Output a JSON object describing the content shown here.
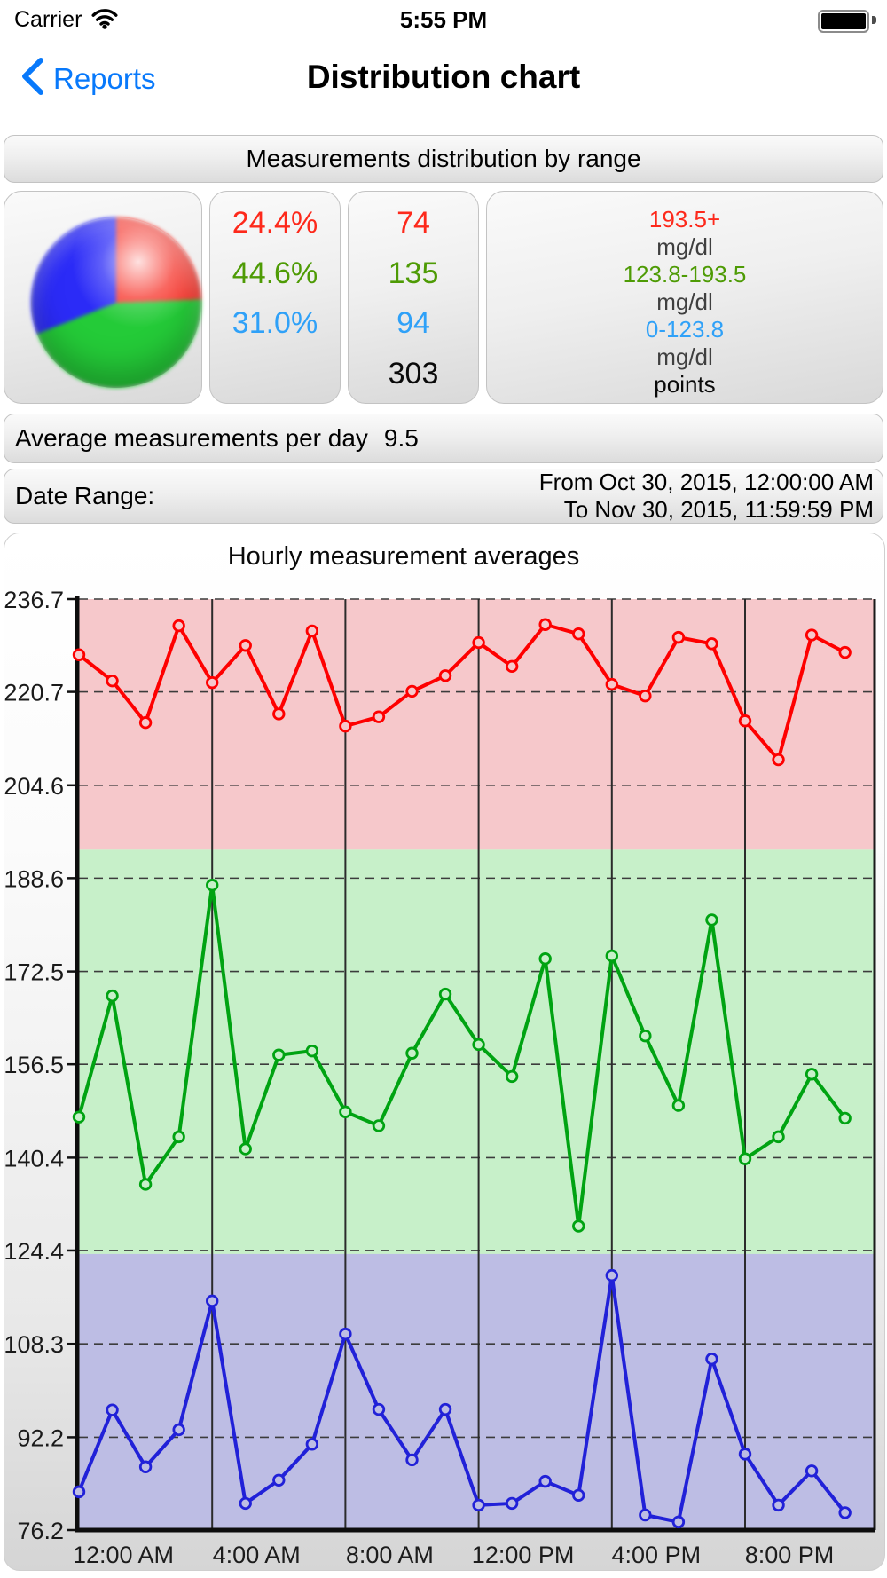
{
  "status_bar": {
    "carrier": "Carrier",
    "time": "5:55 PM"
  },
  "nav_bar": {
    "back_label": "Reports",
    "title": "Distribution chart"
  },
  "colors": {
    "accent_blue": "#0879fb",
    "text_red": "#fd291b",
    "text_green": "#4e9b05",
    "text_blue": "#2fa1f8",
    "pie_red": "#f7362d",
    "pie_green": "#24cb38",
    "pie_blue": "#2b2bf7"
  },
  "distribution": {
    "header": "Measurements distribution by range",
    "percentages": [
      {
        "value": "24.4%",
        "color": "#fd291b"
      },
      {
        "value": "44.6%",
        "color": "#4e9b05"
      },
      {
        "value": "31.0%",
        "color": "#2fa1f8"
      }
    ],
    "counts": [
      {
        "value": "74",
        "color": "#fd291b"
      },
      {
        "value": "135",
        "color": "#4e9b05"
      },
      {
        "value": "94",
        "color": "#2fa1f8"
      },
      {
        "value": "303",
        "color": "#0a0a0a"
      }
    ],
    "ranges": [
      {
        "range": "193.5+",
        "unit": "mg/dl",
        "color": "#fd291b"
      },
      {
        "range": "123.8-193.5",
        "unit": "mg/dl",
        "color": "#4e9b05"
      },
      {
        "range": "0-123.8",
        "unit": "mg/dl",
        "color": "#2fa1f8"
      }
    ],
    "points_label": "points",
    "pie": {
      "slices": [
        24.4,
        44.6,
        31.0
      ]
    }
  },
  "summary": {
    "avg_label": "Average measurements per day",
    "avg_value": "9.5",
    "date_range_label": "Date Range:",
    "date_from": "From Oct 30, 2015, 12:00:00 AM",
    "date_to": "To Nov 30, 2015, 11:59:59 PM"
  },
  "chart_data": {
    "type": "line",
    "title": "Hourly measurement averages",
    "ylim": [
      76.2,
      236.7
    ],
    "y_ticks": [
      236.7,
      220.7,
      204.6,
      188.6,
      172.5,
      156.5,
      140.4,
      124.4,
      108.3,
      92.2,
      76.2
    ],
    "x_ticks": [
      {
        "hour": 0,
        "label": "12:00 AM"
      },
      {
        "hour": 4,
        "label": "4:00 AM"
      },
      {
        "hour": 8,
        "label": "8:00 AM"
      },
      {
        "hour": 12,
        "label": "12:00 PM"
      },
      {
        "hour": 16,
        "label": "4:00 PM"
      },
      {
        "hour": 20,
        "label": "8:00 PM"
      }
    ],
    "grid_hours": [
      4,
      8,
      12,
      16,
      20
    ],
    "bands": [
      {
        "name": "high",
        "from": 193.5,
        "to": 236.7,
        "color": "#f6c8cb"
      },
      {
        "name": "in-range",
        "from": 123.8,
        "to": 193.5,
        "color": "#c7f0c9"
      },
      {
        "name": "low",
        "from": 76.2,
        "to": 123.8,
        "color": "#bdbde4"
      }
    ],
    "series": [
      {
        "name": "high",
        "color": "#fe0000",
        "marker_fill": "#f6c8cb",
        "values": [
          227.1,
          222.6,
          215.4,
          232.1,
          222.3,
          228.7,
          216.9,
          231.2,
          214.8,
          216.4,
          220.8,
          223.5,
          229.2,
          225.1,
          232.3,
          230.7,
          222.0,
          220.0,
          230.1,
          229.0,
          215.7,
          209.0,
          230.5,
          227.5
        ]
      },
      {
        "name": "in-range",
        "color": "#00a312",
        "marker_fill": "#c7f0c9",
        "values": [
          147.4,
          168.3,
          135.8,
          144.0,
          187.4,
          141.9,
          158.1,
          158.8,
          148.3,
          145.9,
          158.4,
          168.6,
          159.9,
          154.4,
          174.7,
          128.6,
          175.2,
          161.4,
          149.4,
          181.4,
          140.2,
          144.0,
          154.8,
          147.2
        ]
      },
      {
        "name": "low",
        "color": "#2121d8",
        "marker_fill": "#bdbde4",
        "values": [
          82.8,
          96.9,
          87.1,
          93.5,
          115.7,
          80.8,
          84.8,
          91.0,
          110.0,
          97.0,
          88.3,
          97.0,
          80.5,
          80.8,
          84.6,
          82.2,
          120.1,
          78.8,
          77.6,
          105.7,
          89.3,
          80.5,
          86.4,
          79.2
        ]
      }
    ]
  }
}
